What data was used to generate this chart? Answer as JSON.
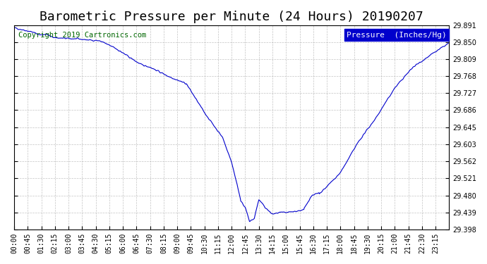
{
  "title": "Barometric Pressure per Minute (24 Hours) 20190207",
  "copyright_text": "Copyright 2019 Cartronics.com",
  "legend_text": "Pressure  (Inches/Hg)",
  "legend_bg": "#0000cc",
  "legend_text_color": "#ffffff",
  "line_color": "#0000cc",
  "background_color": "#ffffff",
  "grid_color": "#aaaaaa",
  "ylim": [
    29.398,
    29.891
  ],
  "yticks": [
    29.398,
    29.439,
    29.48,
    29.521,
    29.562,
    29.603,
    29.645,
    29.686,
    29.727,
    29.768,
    29.809,
    29.85,
    29.891
  ],
  "xtick_labels": [
    "00:00",
    "00:45",
    "01:30",
    "02:15",
    "03:00",
    "03:45",
    "04:30",
    "05:15",
    "06:00",
    "06:45",
    "07:30",
    "08:15",
    "09:00",
    "09:45",
    "10:30",
    "11:15",
    "12:00",
    "12:45",
    "13:30",
    "14:15",
    "15:00",
    "15:45",
    "16:30",
    "17:15",
    "18:00",
    "18:45",
    "19:30",
    "20:15",
    "21:00",
    "21:45",
    "22:30",
    "23:15"
  ],
  "title_fontsize": 13,
  "copyright_fontsize": 7.5,
  "tick_fontsize": 7,
  "legend_fontsize": 8
}
